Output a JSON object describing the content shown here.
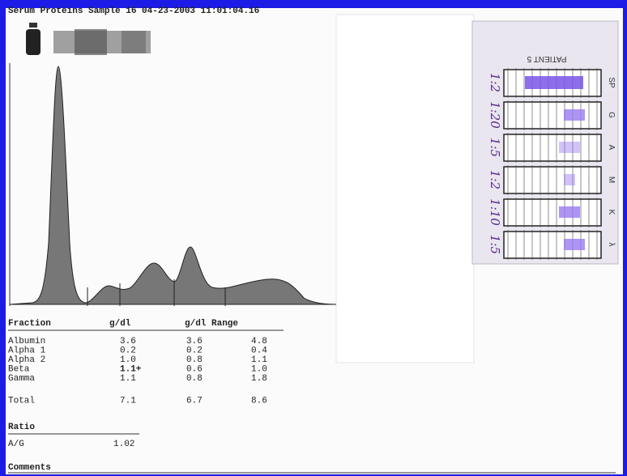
{
  "header": {
    "title": "Serum Proteins Sample 16  04-23-2003 11:01:04.16"
  },
  "table": {
    "headers": [
      "Fraction",
      "g/dl",
      "g/dl Range"
    ],
    "rows": [
      [
        "Albumin",
        "3.6",
        "3.6",
        "4.8"
      ],
      [
        "Alpha 1",
        "0.2",
        "0.2",
        "0.4"
      ],
      [
        "Alpha 2",
        "1.0",
        "0.8",
        "1.1"
      ],
      [
        "Beta",
        "1.1+",
        "0.6",
        "1.0"
      ],
      [
        "Gamma",
        "1.1",
        "0.8",
        "1.8"
      ],
      [
        "Total",
        "7.1",
        "6.7",
        "8.6"
      ]
    ]
  },
  "ratio": {
    "label": "Ratio",
    "name": "A/G",
    "value": "1.02"
  },
  "comments": {
    "label": "Comments"
  },
  "gel": {
    "patient": "PATIENT 5",
    "lanes": [
      {
        "label": "SP",
        "dilution": "1:2"
      },
      {
        "label": "G",
        "dilution": "1:20"
      },
      {
        "label": "A",
        "dilution": "1:5"
      },
      {
        "label": "M",
        "dilution": "1:2"
      },
      {
        "label": "K",
        "dilution": "1:10"
      },
      {
        "label": "λ",
        "dilution": "1:5"
      }
    ]
  }
}
